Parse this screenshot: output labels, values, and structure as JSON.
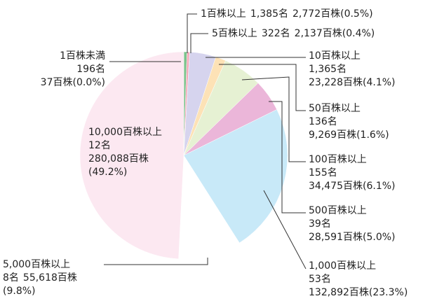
{
  "chart_data": {
    "type": "pie",
    "categories": [
      "1百株未満",
      "1百株以上",
      "5百株以上",
      "10百株以上",
      "50百株以上",
      "100百株以上",
      "500百株以上",
      "1,000百株以上",
      "5,000百株以上",
      "10,000百株以上"
    ],
    "holders": [
      "196名",
      "1,385名",
      "322名",
      "1,365名",
      "136名",
      "155名",
      "39名",
      "53名",
      "8名",
      "12名"
    ],
    "shares": [
      "37百株",
      "2,772百株",
      "2,137百株",
      "23,228百株",
      "9,269百株",
      "34,475百株",
      "28,591百株",
      "132,892百株",
      "55,618百株",
      "280,088百株"
    ],
    "values": [
      0.0,
      0.5,
      0.4,
      4.1,
      1.6,
      6.1,
      5.0,
      23.3,
      9.8,
      49.2
    ],
    "value_labels": [
      "(0.0%)",
      "(0.5%)",
      "(0.4%)",
      "(4.1%)",
      "(1.6%)",
      "(6.1%)",
      "(5.0%)",
      "(23.3%)",
      "(9.8%)",
      "(49.2%)"
    ],
    "colors": [
      "#f9d3df",
      "#7cc38c",
      "#f4a9ba",
      "#d6d4ee",
      "#fde2b6",
      "#e6f1d3",
      "#ebb6d9",
      "#c8e9f8",
      "#ffffff",
      "#fce8f1"
    ]
  }
}
